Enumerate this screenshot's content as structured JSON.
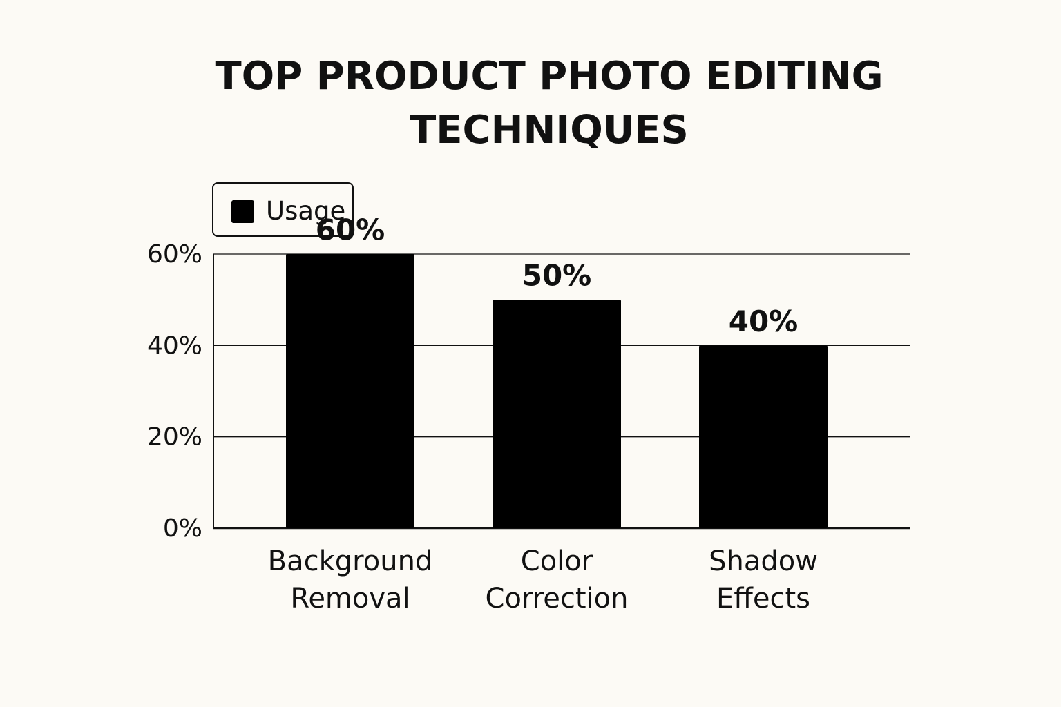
{
  "chart_data": {
    "type": "bar",
    "title": "TOP PRODUCT PHOTO EDITING TECHNIQUES",
    "categories": [
      "Background Removal",
      "Color Correction",
      "Shadow Effects"
    ],
    "series": [
      {
        "name": "Usage",
        "color": "#000000",
        "values": [
          60,
          50,
          40
        ],
        "value_labels": [
          "60%",
          "50%",
          "40%"
        ]
      }
    ],
    "ylim": [
      0,
      60
    ],
    "yticks": [
      {
        "value": 0,
        "label": "0%"
      },
      {
        "value": 20,
        "label": "20%"
      },
      {
        "value": 40,
        "label": "40%"
      },
      {
        "value": 60,
        "label": "60%"
      }
    ],
    "grid": true,
    "legend": "top-left"
  }
}
